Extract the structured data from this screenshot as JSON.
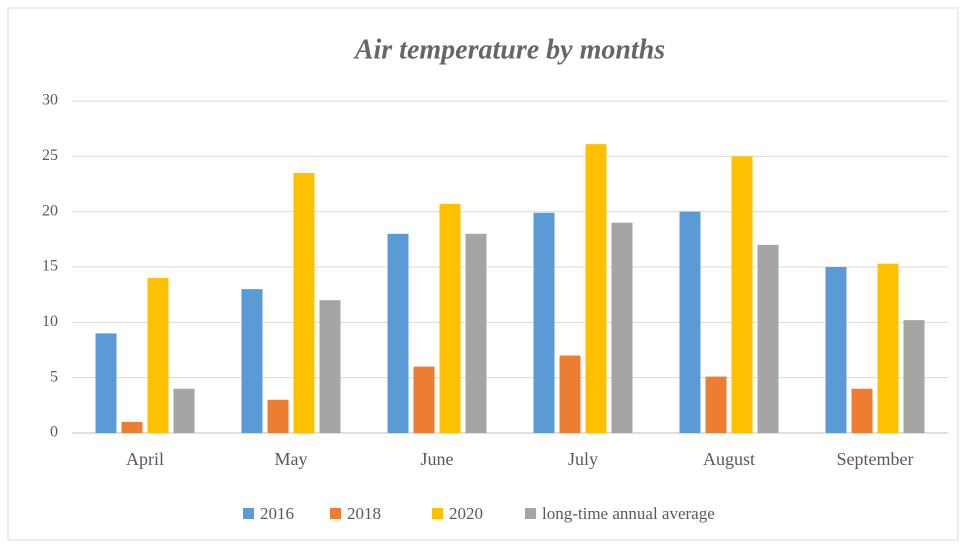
{
  "chart_data": {
    "type": "bar",
    "title": "Air temperature by months",
    "categories": [
      "April",
      "May",
      "June",
      "July",
      "August",
      "September"
    ],
    "series": [
      {
        "name": "2016",
        "color": "#5b9bd5",
        "values": [
          9,
          13,
          18,
          19.9,
          20,
          15
        ]
      },
      {
        "name": "2018",
        "color": "#ed7d31",
        "values": [
          1,
          3,
          6,
          7,
          5.1,
          4
        ]
      },
      {
        "name": "2020",
        "color": "#ffc000",
        "values": [
          14,
          23.5,
          20.7,
          26.1,
          25,
          15.3
        ]
      },
      {
        "name": "long-time annual average",
        "color": "#a5a5a5",
        "values": [
          4,
          12,
          18,
          19,
          17,
          10.2
        ]
      }
    ],
    "ylim": [
      0,
      30
    ],
    "yticks": [
      0,
      5,
      10,
      15,
      20,
      25,
      30
    ],
    "grid": true,
    "legend": "bottom"
  }
}
